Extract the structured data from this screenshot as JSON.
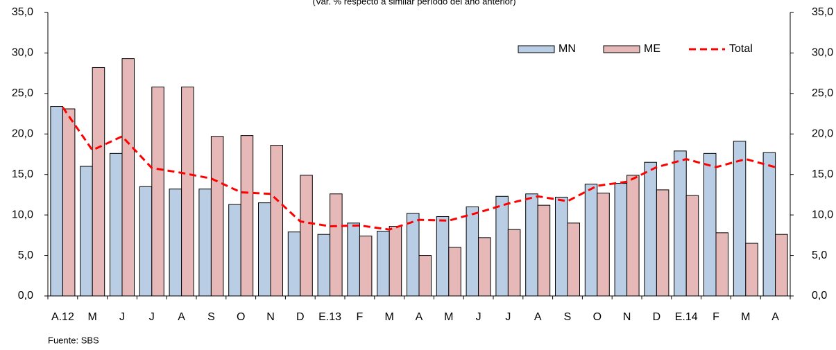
{
  "chart_data": {
    "type": "bar_line",
    "title": "(Var. % respecto a similar período del año anterior)",
    "footnote": "Fuente: SBS",
    "categories": [
      "A.12",
      "M",
      "J",
      "J",
      "A",
      "S",
      "O",
      "N",
      "D",
      "E.13",
      "F",
      "M",
      "A",
      "M",
      "J",
      "J",
      "A",
      "S",
      "O",
      "N",
      "D",
      "E.14",
      "F",
      "M",
      "A"
    ],
    "series": [
      {
        "name": "MN",
        "kind": "bar",
        "color": "#b9cde5",
        "values": [
          23.4,
          16.0,
          17.6,
          13.5,
          13.2,
          13.2,
          11.3,
          11.5,
          7.9,
          7.6,
          9.0,
          8.0,
          10.2,
          9.8,
          11.0,
          12.3,
          12.6,
          12.2,
          13.8,
          13.9,
          16.5,
          17.9,
          17.6,
          19.1,
          17.7
        ]
      },
      {
        "name": "ME",
        "kind": "bar",
        "color": "#e6b9b8",
        "values": [
          23.1,
          28.2,
          29.3,
          25.8,
          25.8,
          19.7,
          19.8,
          18.6,
          14.9,
          12.6,
          7.4,
          8.6,
          5.0,
          6.0,
          7.2,
          8.2,
          11.2,
          9.0,
          12.7,
          14.9,
          13.1,
          12.4,
          7.8,
          6.5,
          7.6
        ]
      },
      {
        "name": "Total",
        "kind": "line",
        "color": "#ff0000",
        "values": [
          23.3,
          18.0,
          19.7,
          15.8,
          15.2,
          14.5,
          12.8,
          12.6,
          9.2,
          8.6,
          8.7,
          8.2,
          9.4,
          9.3,
          10.3,
          11.4,
          12.3,
          11.7,
          13.6,
          14.1,
          15.9,
          16.9,
          15.9,
          16.9,
          15.9
        ]
      }
    ],
    "ylim": [
      0,
      35
    ],
    "yticks": [
      {
        "value": 0,
        "label": "0,0"
      },
      {
        "value": 5,
        "label": "5,0"
      },
      {
        "value": 10,
        "label": "10,0"
      },
      {
        "value": 15,
        "label": "15,0"
      },
      {
        "value": 20,
        "label": "20,0"
      },
      {
        "value": 25,
        "label": "25,0"
      },
      {
        "value": 30,
        "label": "30,0"
      },
      {
        "value": 35,
        "label": "35,0"
      }
    ],
    "y2lim": [
      0,
      35
    ],
    "y2ticks": [
      {
        "value": 0,
        "label": "0,0"
      },
      {
        "value": 5,
        "label": "5,0"
      },
      {
        "value": 10,
        "label": "10,0"
      },
      {
        "value": 15,
        "label": "15,0"
      },
      {
        "value": 20,
        "label": "20,0"
      },
      {
        "value": 25,
        "label": "25,0"
      },
      {
        "value": 30,
        "label": "30,0"
      },
      {
        "value": 35,
        "label": "35,0"
      }
    ],
    "legend": "top-right"
  }
}
